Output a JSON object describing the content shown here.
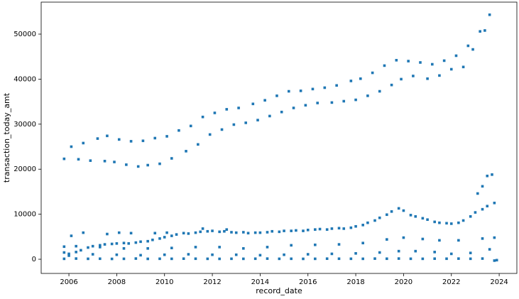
{
  "chart_data": {
    "type": "scatter",
    "xlabel": "record_date",
    "ylabel": "transaction_today_amt",
    "color": "#1f77b4",
    "grid": false,
    "xlim": [
      2004.84,
      2024.74
    ],
    "ylim": [
      -3150,
      57100
    ],
    "xticks": [
      2006,
      2008,
      2010,
      2012,
      2014,
      2016,
      2018,
      2020,
      2022,
      2024
    ],
    "yticks": [
      0,
      10000,
      20000,
      30000,
      40000,
      50000
    ],
    "x": [
      2005.8,
      2006.1,
      2006.4,
      2006.6,
      2006.9,
      2007.2,
      2007.5,
      2007.6,
      2007.9,
      2008.1,
      2008.4,
      2008.6,
      2008.9,
      2009.1,
      2009.3,
      2009.6,
      2009.8,
      2010.1,
      2010.3,
      2010.6,
      2010.9,
      2011.1,
      2011.4,
      2011.6,
      2011.9,
      2012.1,
      2012.4,
      2012.6,
      2012.9,
      2013.1,
      2013.4,
      2013.7,
      2013.9,
      2014.2,
      2014.4,
      2014.7,
      2014.9,
      2015.2,
      2015.4,
      2015.7,
      2015.9,
      2016.2,
      2016.4,
      2016.7,
      2017.0,
      2017.2,
      2017.5,
      2017.8,
      2018.0,
      2018.2,
      2018.5,
      2018.7,
      2019.0,
      2019.2,
      2019.5,
      2019.7,
      2019.9,
      2020.2,
      2020.4,
      2020.7,
      2021.0,
      2021.2,
      2021.5,
      2021.7,
      2022.0,
      2022.2,
      2022.5,
      2022.7,
      2022.9,
      2023.2,
      2023.4,
      2023.6,
      2005.8,
      2006.0,
      2006.3,
      2006.5,
      2006.8,
      2007.0,
      2007.3,
      2007.5,
      2007.8,
      2008.0,
      2008.3,
      2008.5,
      2008.8,
      2009.0,
      2009.3,
      2009.5,
      2009.8,
      2010.0,
      2010.3,
      2010.5,
      2010.8,
      2011.0,
      2011.3,
      2011.5,
      2011.8,
      2012.0,
      2012.3,
      2012.5,
      2012.8,
      2013.0,
      2013.3,
      2013.5,
      2013.8,
      2014.0,
      2014.3,
      2014.5,
      2014.8,
      2015.0,
      2015.3,
      2015.5,
      2015.8,
      2016.0,
      2016.3,
      2016.5,
      2016.8,
      2017.0,
      2017.3,
      2017.5,
      2017.8,
      2018.0,
      2018.3,
      2018.5,
      2018.8,
      2019.0,
      2019.3,
      2019.5,
      2019.8,
      2020.0,
      2020.3,
      2020.5,
      2020.8,
      2021.0,
      2021.3,
      2021.5,
      2021.8,
      2022.0,
      2022.3,
      2022.5,
      2022.8,
      2023.0,
      2023.3,
      2023.5,
      2023.8,
      2006.1,
      2006.6,
      2007.6,
      2008.1,
      2008.6,
      2009.6,
      2010.1,
      2011.6,
      2012.6,
      2023.1,
      2023.3,
      2023.5,
      2023.7,
      2005.8,
      2006.3,
      2007.3,
      2008.3,
      2009.3,
      2010.3,
      2011.3,
      2012.3,
      2013.3,
      2014.3,
      2015.3,
      2016.3,
      2017.3,
      2018.3,
      2019.3,
      2020.0,
      2020.8,
      2021.5,
      2022.3,
      2023.3,
      2023.8,
      2006.0,
      2007.0,
      2008.0,
      2009.0,
      2010.0,
      2011.0,
      2012.0,
      2013.0,
      2014.0,
      2015.0,
      2016.0,
      2017.0,
      2018.0,
      2019.0,
      2019.8,
      2020.5,
      2021.3,
      2022.0,
      2022.8,
      2023.6,
      2005.8,
      2006.3,
      2006.8,
      2007.3,
      2007.8,
      2008.3,
      2008.8,
      2009.3,
      2009.8,
      2010.3,
      2010.8,
      2011.3,
      2011.8,
      2012.3,
      2012.8,
      2013.3,
      2013.8,
      2014.3,
      2014.8,
      2015.3,
      2015.8,
      2016.3,
      2016.8,
      2017.3,
      2017.8,
      2018.3,
      2018.8,
      2019.3,
      2019.8,
      2020.3,
      2020.8,
      2021.3,
      2021.8,
      2022.3,
      2022.8,
      2023.3,
      2023.8,
      2023.9
    ],
    "values": [
      22300,
      25000,
      22200,
      25800,
      21900,
      26800,
      21800,
      27400,
      21600,
      26600,
      21000,
      26200,
      20600,
      26300,
      20900,
      26900,
      21200,
      27300,
      22400,
      28600,
      24000,
      29600,
      25500,
      31600,
      27700,
      32500,
      28800,
      33300,
      29900,
      33600,
      30300,
      34500,
      30900,
      35300,
      31800,
      36300,
      32700,
      37300,
      33600,
      37400,
      34200,
      37800,
      34700,
      38100,
      34800,
      38600,
      35100,
      39600,
      35400,
      40100,
      36300,
      41400,
      37300,
      43000,
      38700,
      44200,
      40000,
      44000,
      40700,
      43700,
      40100,
      43300,
      40800,
      44100,
      42200,
      45200,
      42700,
      47400,
      46600,
      50600,
      50800,
      54300,
      1500,
      800,
      1600,
      2000,
      2600,
      2900,
      3100,
      3300,
      3400,
      3500,
      3600,
      3500,
      3700,
      3900,
      4000,
      4300,
      4600,
      4900,
      5200,
      5500,
      5800,
      5700,
      5900,
      6100,
      6200,
      6300,
      6100,
      6200,
      6000,
      5900,
      6000,
      5800,
      5900,
      5900,
      6000,
      6200,
      6100,
      6300,
      6300,
      6400,
      6300,
      6500,
      6600,
      6700,
      6600,
      6800,
      6900,
      6800,
      7000,
      7300,
      7600,
      8100,
      8600,
      9200,
      9900,
      10600,
      11300,
      10800,
      9800,
      9500,
      9100,
      8800,
      8300,
      8100,
      8000,
      7900,
      8100,
      8600,
      9500,
      10400,
      11100,
      11800,
      12500,
      5200,
      5900,
      5600,
      5900,
      5800,
      5800,
      5900,
      6800,
      6600,
      14600,
      16200,
      18500,
      18800,
      2800,
      2900,
      2700,
      2400,
      2400,
      2500,
      2700,
      2700,
      2400,
      2700,
      3100,
      3200,
      3300,
      3600,
      4400,
      4800,
      4500,
      4200,
      4200,
      4600,
      4800,
      1200,
      1100,
      1000,
      900,
      1000,
      1100,
      1000,
      1000,
      900,
      1000,
      1100,
      1200,
      1300,
      1500,
      1800,
      1800,
      1600,
      1200,
      1400,
      2200,
      100,
      150,
      100,
      120,
      80,
      100,
      150,
      90,
      110,
      100,
      130,
      120,
      100,
      90,
      110,
      100,
      120,
      140,
      100,
      110,
      90,
      100,
      130,
      120,
      110,
      100,
      140,
      120,
      150,
      110,
      100,
      130,
      120,
      140,
      110,
      150,
      -300,
      -200
    ]
  }
}
